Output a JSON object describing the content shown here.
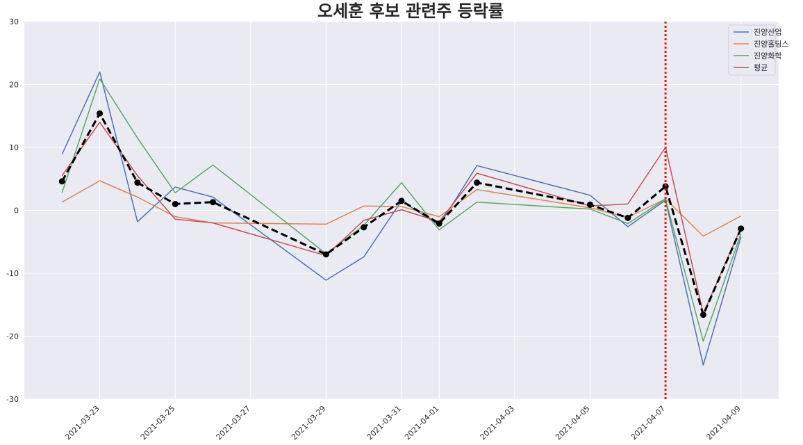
{
  "chart_data": {
    "type": "line",
    "title": "오세훈 후보 관련주 등락률",
    "xlabel": "",
    "ylabel": "",
    "x": [
      "2021-03-22",
      "2021-03-23",
      "2021-03-24",
      "2021-03-25",
      "2021-03-26",
      "2021-03-29",
      "2021-03-30",
      "2021-03-31",
      "2021-04-01",
      "2021-04-02",
      "2021-04-05",
      "2021-04-06",
      "2021-04-07",
      "2021-04-08",
      "2021-04-09"
    ],
    "x_ticks": [
      "2021-03-23",
      "2021-03-25",
      "2021-03-27",
      "2021-03-29",
      "2021-03-31",
      "2021-04-01",
      "2021-04-03",
      "2021-04-05",
      "2021-04-07",
      "2021-04-09"
    ],
    "xlim": [
      "2021-03-21",
      "2021-04-10"
    ],
    "ylim": [
      -30,
      30
    ],
    "y_ticks": [
      -30,
      -20,
      -10,
      0,
      10,
      20,
      30
    ],
    "grid": true,
    "legend_position": "top-right",
    "series": [
      {
        "name": "진양산업",
        "color": "#4c72b0",
        "values": [
          8.9,
          22.0,
          -1.8,
          3.7,
          2.1,
          -11.1,
          -7.4,
          1.5,
          -2.4,
          7.1,
          2.4,
          -2.6,
          1.6,
          -24.6,
          -4.2
        ]
      },
      {
        "name": "진양홀딩스",
        "color": "#dd8452",
        "values": [
          1.3,
          4.7,
          2.1,
          -1.0,
          -2.0,
          -2.2,
          0.7,
          0.6,
          -1.0,
          3.3,
          0.4,
          -1.1,
          1.8,
          -4.1,
          -0.9
        ]
      },
      {
        "name": "진양화학",
        "color": "#55a868",
        "values": [
          2.8,
          20.9,
          11.5,
          2.8,
          7.2,
          -6.9,
          -2.4,
          4.4,
          -3.1,
          1.3,
          0.2,
          -2.1,
          1.8,
          -20.8,
          -3.7
        ]
      },
      {
        "name": "평균",
        "color": "#c44e52",
        "values": [
          5.5,
          14.0,
          5.5,
          -1.4,
          -2.0,
          -7.2,
          -1.6,
          0.1,
          -1.8,
          5.9,
          0.7,
          1.0,
          10.0,
          -16.4,
          -2.8
        ]
      }
    ],
    "mean_line": {
      "color": "#000000",
      "style": "dashed",
      "marker": "circle",
      "values": [
        4.6,
        15.4,
        4.4,
        1.0,
        1.3,
        -7.0,
        -2.7,
        1.5,
        -2.1,
        4.4,
        0.9,
        -1.2,
        3.8,
        -16.6,
        -2.9
      ]
    },
    "vline": {
      "x": "2021-04-07",
      "color": "#e31a1c",
      "style": "dotted"
    }
  }
}
